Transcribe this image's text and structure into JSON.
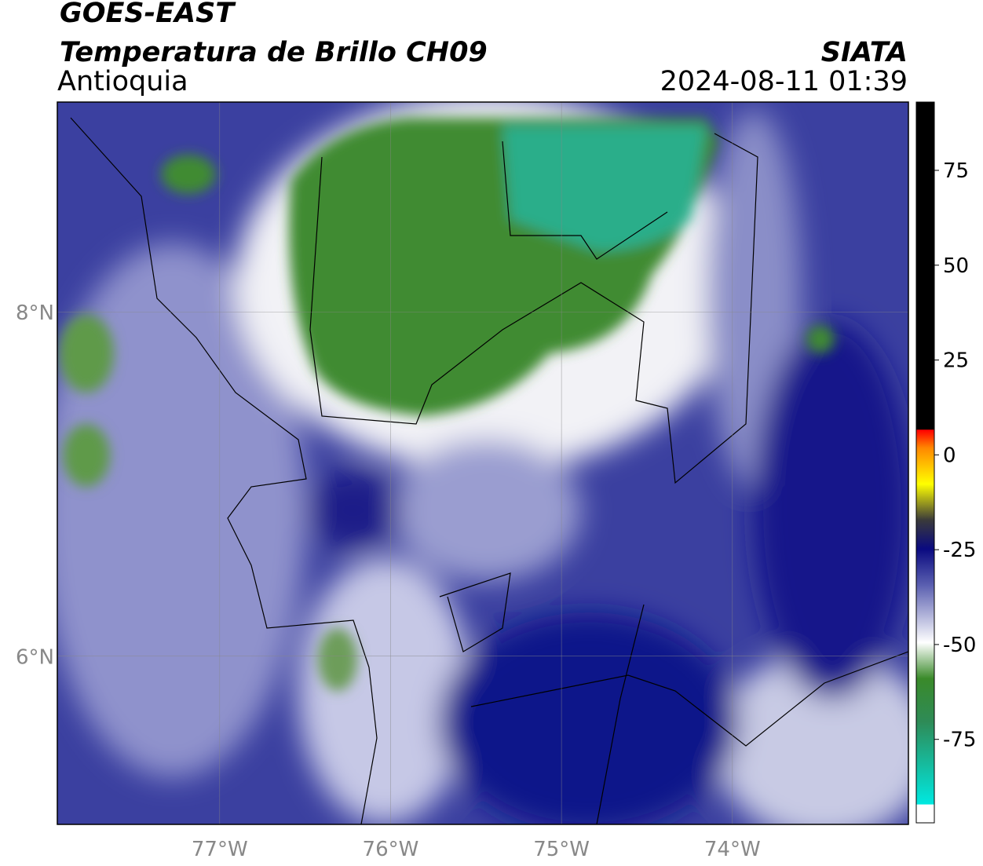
{
  "header": {
    "title": "GOES-EAST",
    "subtitle": "Temperatura de Brillo CH09",
    "region": "Antioquia",
    "source": "SIATA",
    "datetime": "2024-08-11 01:39"
  },
  "map": {
    "xlim": [
      -77.95,
      -72.97
    ],
    "ylim": [
      5.02,
      9.22
    ],
    "xticks": [
      {
        "value": -77,
        "label": "77°W"
      },
      {
        "value": -76,
        "label": "76°W"
      },
      {
        "value": -75,
        "label": "75°W"
      },
      {
        "value": -74,
        "label": "74°W"
      }
    ],
    "yticks": [
      {
        "value": 6,
        "label": "6°N"
      },
      {
        "value": 8,
        "label": "8°N"
      }
    ],
    "grid": true
  },
  "colorbar": {
    "lim": [
      -97,
      93
    ],
    "ticks": [
      75,
      50,
      25,
      0,
      -25,
      -50,
      -75
    ]
  }
}
